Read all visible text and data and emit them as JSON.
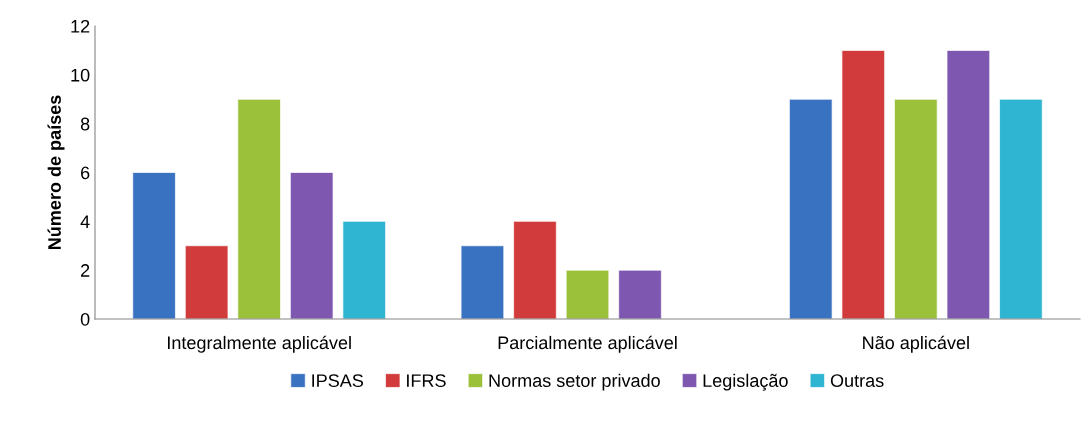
{
  "chart_data": {
    "type": "bar",
    "ylabel": "Número de países",
    "categories": [
      "Integralmente aplicável",
      "Parcialmente aplicável",
      "Não aplicável"
    ],
    "series": [
      {
        "name": "IPSAS",
        "color": "#3a72c2",
        "values": [
          6,
          3,
          9
        ]
      },
      {
        "name": "IFRS",
        "color": "#d23b3b",
        "values": [
          3,
          4,
          11
        ]
      },
      {
        "name": "Normas setor privado",
        "color": "#9bc13a",
        "values": [
          9,
          2,
          9
        ]
      },
      {
        "name": "Legislação",
        "color": "#7d57b0",
        "values": [
          6,
          2,
          11
        ]
      },
      {
        "name": "Outras",
        "color": "#2fb4d1",
        "values": [
          4,
          null,
          9
        ]
      }
    ],
    "ylim": [
      0,
      12
    ],
    "yticks": [
      0,
      2,
      4,
      6,
      8,
      10,
      12
    ],
    "grid": false,
    "legend": "bottom"
  }
}
